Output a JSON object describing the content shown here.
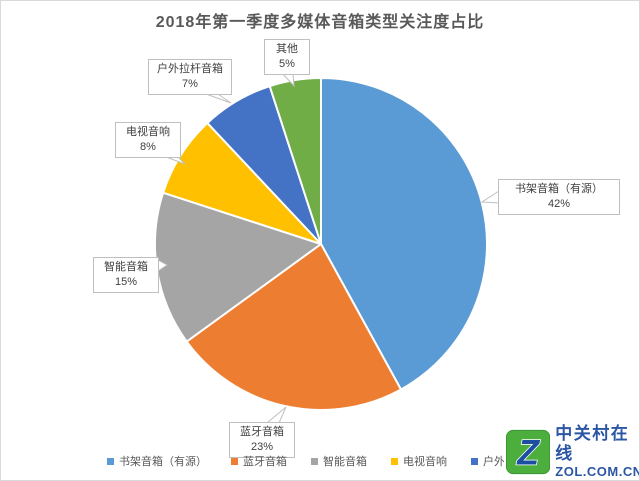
{
  "title": "2018年第一季度多媒体音箱类型关注度占比",
  "chart_data": {
    "type": "pie",
    "title": "2018年第一季度多媒体音箱类型关注度占比",
    "categories": [
      "书架音箱（有源）",
      "蓝牙音箱",
      "智能音箱",
      "电视音响",
      "户外拉杆音箱",
      "其他"
    ],
    "values": [
      42,
      23,
      15,
      8,
      7,
      5
    ],
    "values_display": [
      "42%",
      "23%",
      "15%",
      "8%",
      "7%",
      "5%"
    ],
    "unit": "%",
    "colors": [
      "#5B9BD5",
      "#ED7D31",
      "#A5A5A5",
      "#FFC000",
      "#4472C4",
      "#70AD47"
    ],
    "start_angle_deg": 0,
    "direction": "clockwise",
    "legend_position": "bottom",
    "data_labels": "callout"
  },
  "legend_visible_items": [
    "书架音箱（有源）",
    "蓝牙音箱",
    "智能音箱",
    "电视音响",
    "户外拉杆音箱"
  ],
  "watermark": {
    "site_name": "中关村在线",
    "site_domain": "ZOL.COM.CN",
    "logo_letter": "Z",
    "logo_green": "#4CAE3C",
    "logo_blue": "#1C4FA1"
  }
}
